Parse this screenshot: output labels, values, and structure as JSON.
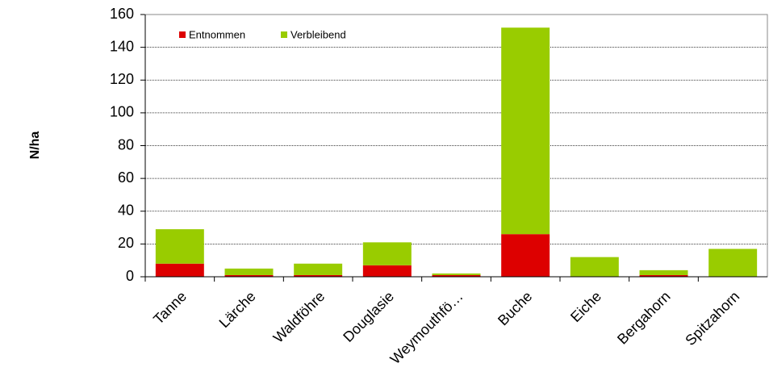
{
  "chart_data": {
    "type": "stacked_bar",
    "ylabel": "N/ha",
    "categories": [
      "Tanne",
      "Lärche",
      "Waldföhre",
      "Douglasie",
      "Weymouthfö…",
      "Buche",
      "Eiche",
      "Bergahorn",
      "Spitzahorn"
    ],
    "series": [
      {
        "name": "Entnommen",
        "color": "#dd0000",
        "values": [
          8,
          1,
          1,
          7,
          1,
          26,
          0,
          1,
          0
        ]
      },
      {
        "name": "Verbleibend",
        "color": "#99cc00",
        "values": [
          21,
          4,
          7,
          14,
          1,
          126,
          12,
          3,
          17
        ]
      }
    ],
    "ylim": [
      0,
      160
    ],
    "yticks": [
      0,
      20,
      40,
      60,
      80,
      100,
      120,
      140,
      160
    ],
    "grid": true,
    "legend": "top-left"
  }
}
